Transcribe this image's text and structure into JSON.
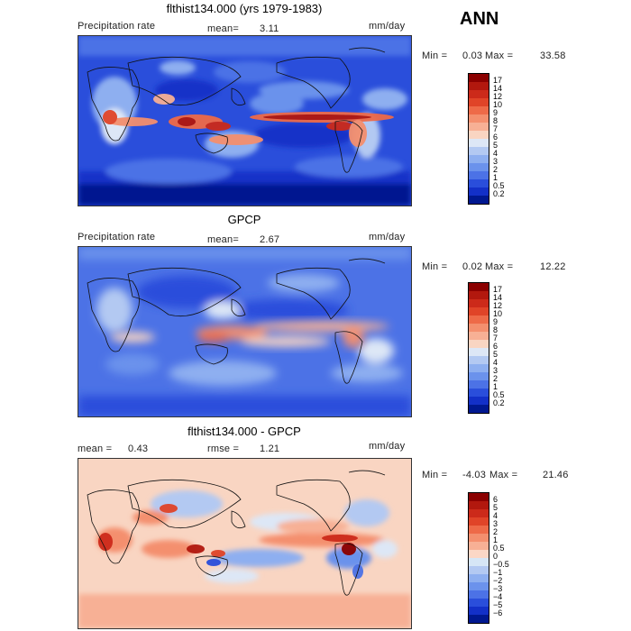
{
  "season": "ANN",
  "panels": [
    {
      "title": "flthist134.000 (yrs 1979-1983)",
      "left_label": "Precipitation rate",
      "mid_label": "mean=",
      "mid_value": "3.11",
      "units": "mm/day",
      "min_label": "Min =",
      "min_value": "0.03",
      "max_label": "Max =",
      "max_value": "33.58",
      "colorbar_labels": [
        "17",
        "14",
        "12",
        "10",
        "9",
        "8",
        "7",
        "6",
        "5",
        "4",
        "3",
        "2",
        "1",
        "0.5",
        "0.2"
      ],
      "colorbar_colors": [
        "#8b0000",
        "#b2180e",
        "#cc2a1a",
        "#e04428",
        "#ee6a48",
        "#f48f6e",
        "#f7b095",
        "#f9d5c2",
        "#dde7f6",
        "#b3c9f2",
        "#8eaff0",
        "#6b92ec",
        "#4c72e6",
        "#2a4edb",
        "#1330c8",
        "#001890"
      ]
    },
    {
      "title": "GPCP",
      "left_label": "Precipitation rate",
      "mid_label": "mean=",
      "mid_value": "2.67",
      "units": "mm/day",
      "min_label": "Min =",
      "min_value": "0.02",
      "max_label": "Max =",
      "max_value": "12.22",
      "colorbar_labels": [
        "17",
        "14",
        "12",
        "10",
        "9",
        "8",
        "7",
        "6",
        "5",
        "4",
        "3",
        "2",
        "1",
        "0.5",
        "0.2"
      ],
      "colorbar_colors": [
        "#8b0000",
        "#b2180e",
        "#cc2a1a",
        "#e04428",
        "#ee6a48",
        "#f48f6e",
        "#f7b095",
        "#f9d5c2",
        "#dde7f6",
        "#b3c9f2",
        "#8eaff0",
        "#6b92ec",
        "#4c72e6",
        "#2a4edb",
        "#1330c8",
        "#001890"
      ]
    },
    {
      "title": "flthist134.000 - GPCP",
      "left_label": "mean =",
      "left_value": "0.43",
      "mid_label": "rmse =",
      "mid_value": "1.21",
      "units": "mm/day",
      "min_label": "Min =",
      "min_value": "-4.03",
      "max_label": "Max =",
      "max_value": "21.46",
      "colorbar_labels": [
        "6",
        "5",
        "4",
        "3",
        "2",
        "1",
        "0.5",
        "0",
        "−0.5",
        "−1",
        "−2",
        "−3",
        "−4",
        "−5",
        "−6"
      ],
      "colorbar_colors": [
        "#8b0000",
        "#b2180e",
        "#cc2a1a",
        "#e04428",
        "#ee6a48",
        "#f48f6e",
        "#f7b095",
        "#fbd7c6",
        "#d6e6f6",
        "#b3c9f2",
        "#8eaff0",
        "#6b92ec",
        "#4c72e6",
        "#2a4edb",
        "#1330c8",
        "#001890"
      ]
    }
  ]
}
